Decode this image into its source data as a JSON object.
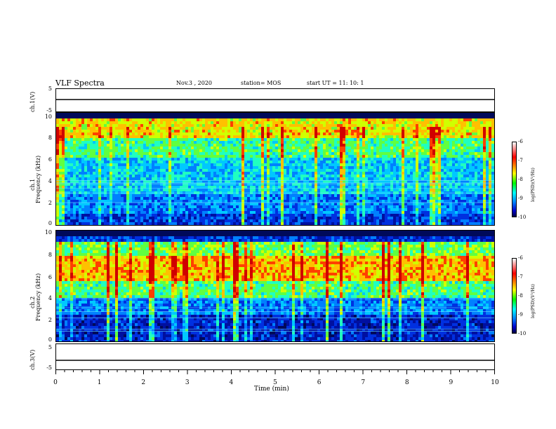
{
  "header": {
    "title": "VLF Spectra",
    "date": "Nov.3  , 2020",
    "station": "station= MOS",
    "start": "start  UT =   11: 10: 1"
  },
  "chart_data": [
    {
      "type": "line",
      "panel": "ch1-waveform",
      "ylabel": "ch.1(V)",
      "y_ticks": [
        "5",
        "-5"
      ],
      "ylim": [
        -5,
        5
      ],
      "xlim": [
        0,
        10
      ],
      "value_approx": 0
    },
    {
      "type": "heatmap",
      "panel": "ch1-spectrogram",
      "ylabel_channel": "ch.1",
      "ylabel": "Frequency (kHz)",
      "ylim": [
        0,
        10
      ],
      "y_ticks": [
        "10",
        "8",
        "6",
        "4",
        "2",
        "0"
      ],
      "colorbar": {
        "ticks": [
          "-6",
          "-7",
          "-8",
          "-9",
          "-10"
        ],
        "label": "log(PSD)(V²/Hz)",
        "range": [
          -10,
          -6
        ]
      }
    },
    {
      "type": "heatmap",
      "panel": "ch2-spectrogram",
      "ylabel_channel": "ch.2",
      "ylabel": "Frequency (kHz)",
      "ylim": [
        0,
        10
      ],
      "y_ticks": [
        "10",
        "8",
        "6",
        "4",
        "2",
        "0"
      ],
      "colorbar": {
        "ticks": [
          "-6",
          "-7",
          "-8",
          "-9",
          "-10"
        ],
        "label": "log(PSD)(V²/Hz)",
        "range": [
          -10,
          -6
        ]
      }
    },
    {
      "type": "line",
      "panel": "ch3-waveform",
      "ylabel": "ch.3(V)",
      "y_ticks": [
        "5",
        "-5"
      ],
      "ylim": [
        -5,
        5
      ],
      "xlim": [
        0,
        10
      ],
      "value_approx": -1.5
    }
  ],
  "xaxis": {
    "label": "Time  (min)",
    "ticks": [
      "0",
      "1",
      "2",
      "3",
      "4",
      "5",
      "6",
      "7",
      "8",
      "9",
      "10"
    ],
    "range": [
      0,
      10
    ]
  }
}
